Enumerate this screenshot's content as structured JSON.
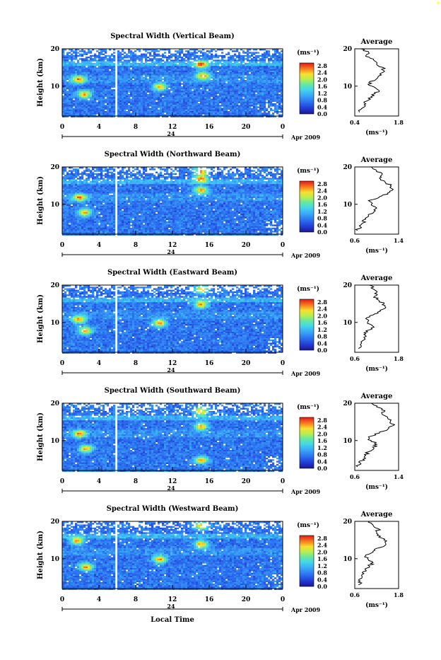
{
  "figure": {
    "xlabel_bottom": "Local Time",
    "date_label": "Apr 2009",
    "day_label": "24",
    "colorbar_unit": "(ms⁻¹)",
    "colorbar_ticks": [
      "2.8",
      "2.4",
      "2.0",
      "1.6",
      "1.2",
      "0.8",
      "0.4",
      "0.0"
    ],
    "avg_title": "Average",
    "avg_unit": "(ms⁻¹)",
    "ylabel": "Height (km)"
  },
  "chart_data": [
    {
      "type": "heatmap",
      "title": "Spectral Width (Vertical Beam)",
      "xlabel": "",
      "ylabel": "Height (km)",
      "xticks": [
        "0",
        "4",
        "8",
        "12",
        "16",
        "20",
        "0"
      ],
      "yticks": [
        "20",
        "10"
      ],
      "xlim": [
        0,
        24
      ],
      "ylim": [
        2,
        20
      ],
      "data_gap_hour": 5.75,
      "hot_spots": [
        [
          2.3,
          8
        ],
        [
          1.7,
          12
        ],
        [
          15.2,
          13
        ],
        [
          15,
          16
        ],
        [
          10.5,
          10
        ]
      ],
      "avg_profile": {
        "xlim": [
          0.4,
          1.8
        ],
        "xticks": [
          "0.4",
          "1.8"
        ],
        "yticks": [
          "20",
          "10"
        ],
        "height": [
          3,
          4,
          5,
          6,
          7,
          8,
          9,
          10,
          11,
          12,
          13,
          14,
          15,
          16,
          17,
          18,
          19,
          20
        ],
        "value": [
          0.55,
          0.62,
          0.7,
          0.78,
          0.95,
          1.05,
          1.15,
          0.95,
          0.85,
          1.1,
          1.25,
          1.35,
          1.3,
          1.1,
          1.0,
          0.75,
          0.85,
          0.6
        ]
      }
    },
    {
      "type": "heatmap",
      "title": "Spectral Width (Northward Beam)",
      "xlabel": "",
      "ylabel": "Height (km)",
      "xticks": [
        "0",
        "4",
        "8",
        "12",
        "16",
        "20",
        "0"
      ],
      "yticks": [
        "20",
        "10"
      ],
      "xlim": [
        0,
        24
      ],
      "ylim": [
        2,
        20
      ],
      "data_gap_hour": 5.75,
      "hot_spots": [
        [
          2.3,
          8
        ],
        [
          1.8,
          12
        ],
        [
          15,
          14
        ],
        [
          15,
          17
        ],
        [
          15,
          19
        ]
      ],
      "avg_profile": {
        "xlim": [
          0.6,
          1.4
        ],
        "xticks": [
          "0.6",
          "1.4"
        ],
        "yticks": [
          "20",
          "10"
        ],
        "height": [
          3,
          4,
          5,
          6,
          7,
          8,
          9,
          10,
          11,
          12,
          13,
          14,
          15,
          16,
          17,
          18,
          19,
          20
        ],
        "value": [
          0.65,
          0.7,
          0.75,
          0.8,
          0.85,
          0.95,
          1.0,
          0.9,
          0.85,
          1.05,
          1.2,
          1.3,
          1.25,
          1.15,
          1.05,
          1.1,
          1.0,
          0.9
        ]
      }
    },
    {
      "type": "heatmap",
      "title": "Spectral Width (Eastward Beam)",
      "xlabel": "",
      "ylabel": "Height (km)",
      "xticks": [
        "0",
        "4",
        "8",
        "12",
        "16",
        "20",
        "0"
      ],
      "yticks": [
        "20",
        "10"
      ],
      "xlim": [
        0,
        24
      ],
      "ylim": [
        2,
        20
      ],
      "data_gap_hour": 5.75,
      "hot_spots": [
        [
          2.4,
          8
        ],
        [
          1.7,
          11
        ],
        [
          15,
          15
        ],
        [
          15,
          19
        ],
        [
          10.5,
          10
        ]
      ],
      "avg_profile": {
        "xlim": [
          0.6,
          1.8
        ],
        "xticks": [
          "0.6",
          "1.8"
        ],
        "yticks": [
          "20",
          "10"
        ],
        "height": [
          3,
          4,
          5,
          6,
          7,
          8,
          9,
          10,
          11,
          12,
          13,
          14,
          15,
          16,
          17,
          18,
          19,
          20
        ],
        "value": [
          0.7,
          0.75,
          0.8,
          0.85,
          0.9,
          1.0,
          1.1,
          0.95,
          0.9,
          1.1,
          1.3,
          1.45,
          1.4,
          1.25,
          1.15,
          1.2,
          1.1,
          1.0
        ]
      }
    },
    {
      "type": "heatmap",
      "title": "Spectral Width (Southward Beam)",
      "xlabel": "",
      "ylabel": "Height (km)",
      "xticks": [
        "0",
        "4",
        "8",
        "12",
        "16",
        "20",
        "0"
      ],
      "yticks": [
        "20",
        "10"
      ],
      "xlim": [
        0,
        24
      ],
      "ylim": [
        2,
        20
      ],
      "data_gap_hour": 5.75,
      "hot_spots": [
        [
          2.5,
          8
        ],
        [
          1.8,
          12
        ],
        [
          15,
          14
        ],
        [
          15,
          18
        ],
        [
          15,
          5
        ]
      ],
      "avg_profile": {
        "xlim": [
          0.6,
          1.4
        ],
        "xticks": [
          "0.6",
          "1.4"
        ],
        "yticks": [
          "20",
          "10"
        ],
        "height": [
          3,
          4,
          5,
          6,
          7,
          8,
          9,
          10,
          11,
          12,
          13,
          14,
          15,
          16,
          17,
          18,
          19,
          20
        ],
        "value": [
          0.65,
          0.7,
          0.75,
          0.8,
          0.85,
          0.95,
          1.0,
          0.9,
          0.85,
          1.05,
          1.2,
          1.3,
          1.25,
          1.2,
          1.1,
          1.15,
          1.0,
          0.9
        ]
      }
    },
    {
      "type": "heatmap",
      "title": "Spectral Width (Westward Beam)",
      "xlabel": "",
      "ylabel": "Height (km)",
      "xticks": [
        "0",
        "4",
        "8",
        "12",
        "16",
        "20",
        "0"
      ],
      "yticks": [
        "20",
        "10"
      ],
      "xlim": [
        0,
        24
      ],
      "ylim": [
        2,
        20
      ],
      "data_gap_hour": 5.75,
      "hot_spots": [
        [
          2.5,
          8
        ],
        [
          1.5,
          15
        ],
        [
          15,
          14
        ],
        [
          15,
          19
        ],
        [
          10.5,
          10
        ]
      ],
      "avg_profile": {
        "xlim": [
          0.6,
          1.8
        ],
        "xticks": [
          "0.6",
          "1.8"
        ],
        "yticks": [
          "20",
          "10"
        ],
        "height": [
          3,
          4,
          5,
          6,
          7,
          8,
          9,
          10,
          11,
          12,
          13,
          14,
          15,
          16,
          17,
          18,
          19,
          20
        ],
        "value": [
          0.7,
          0.75,
          0.8,
          0.85,
          0.9,
          1.0,
          1.1,
          0.95,
          0.9,
          1.1,
          1.3,
          1.45,
          1.4,
          1.3,
          1.2,
          1.25,
          1.1,
          1.0
        ]
      }
    }
  ]
}
